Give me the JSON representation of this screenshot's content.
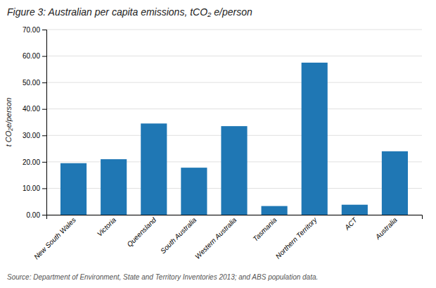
{
  "chart_data": {
    "type": "bar",
    "title": "Figure 3: Australian per capita emissions, tCO₂ e/person",
    "categories": [
      "New South Wales",
      "Victoria",
      "Queensland",
      "South Australia",
      "Western Australia",
      "Tasmania",
      "Northern Territory",
      "ACT",
      "Australia"
    ],
    "values": [
      19.5,
      21.0,
      34.5,
      17.8,
      33.5,
      3.3,
      57.5,
      3.8,
      24.0
    ],
    "ylabel": "t CO₂e/person",
    "ylim": [
      0,
      70
    ],
    "yticks": [
      {
        "value": 0,
        "label": "0.00"
      },
      {
        "value": 10,
        "label": "10.00"
      },
      {
        "value": 20,
        "label": "20.00"
      },
      {
        "value": 30,
        "label": "30.00"
      },
      {
        "value": 40,
        "label": "40.00"
      },
      {
        "value": 50,
        "label": "50.00"
      },
      {
        "value": 60,
        "label": "60.00"
      },
      {
        "value": 70,
        "label": "70.00"
      }
    ],
    "grid": true,
    "source": "Source: Department of Environment, State and Territory Inventories 2013; and ABS population data."
  }
}
